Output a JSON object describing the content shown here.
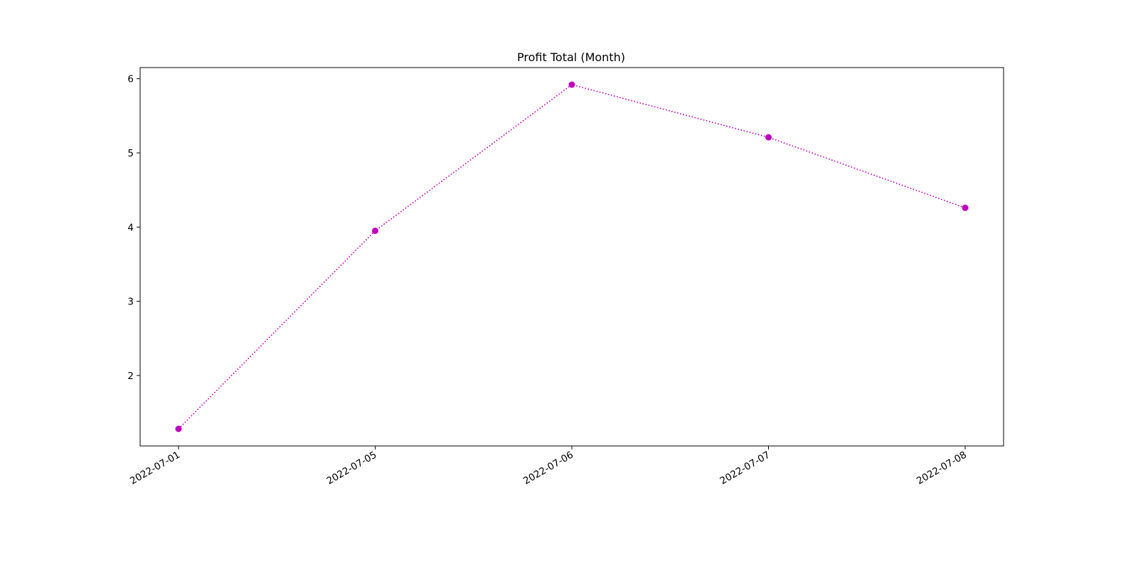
{
  "chart_data": {
    "type": "line",
    "title": "Profit Total (Month)",
    "xlabel": "",
    "ylabel": "",
    "categories": [
      "2022-07-01",
      "2022-07-05",
      "2022-07-06",
      "2022-07-07",
      "2022-07-08"
    ],
    "series": [
      {
        "values": [
          1.28,
          3.95,
          5.92,
          5.21,
          4.26
        ],
        "color": "#bf00bf",
        "line_style": "dotted",
        "marker": "circle"
      }
    ],
    "yticks": [
      2,
      3,
      4,
      5,
      6
    ],
    "ylim": [
      1.06,
      6.15
    ],
    "grid": false,
    "legend": "none"
  }
}
